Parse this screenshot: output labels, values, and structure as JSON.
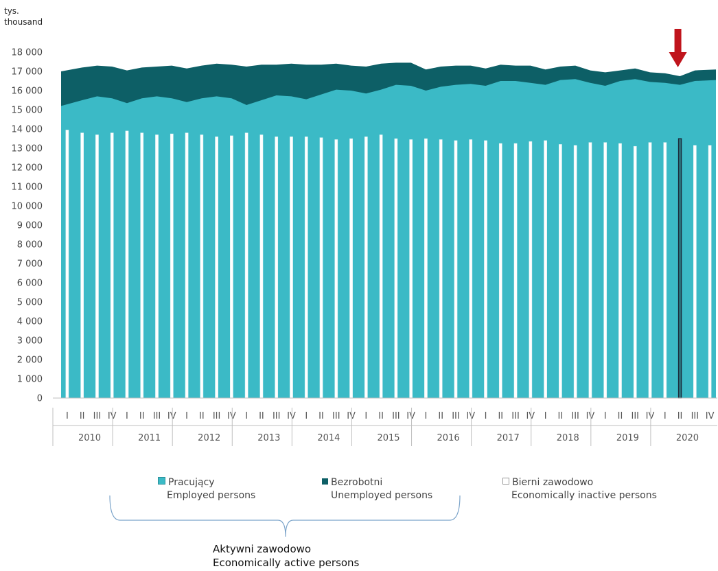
{
  "unit_label": {
    "pl": "tys.",
    "en": "thousand"
  },
  "legend": [
    {
      "pl": "Pracujący",
      "en": "Employed persons",
      "color": "#3bbac6"
    },
    {
      "pl": "Bezrobotni",
      "en": "Unemployed persons",
      "color": "#0d5f66"
    },
    {
      "pl": "Bierni zawodowo",
      "en": "Economically inactive persons",
      "color": "#ffffff"
    }
  ],
  "bracket_label": {
    "pl": "Aktywni zawodowo",
    "en": "Economically active persons"
  },
  "colors": {
    "employed": "#3bbac6",
    "unemployed": "#0d5f66",
    "inactive_bar": "#ffffff",
    "highlight_bar_border": "#1a2a3a",
    "arrow": "#c0141c",
    "axis": "#bfbfbf"
  },
  "chart_data": {
    "type": "area",
    "ylim": [
      0,
      18000
    ],
    "yticks": [
      "0",
      "1 000",
      "2 000",
      "3 000",
      "4 000",
      "5 000",
      "6 000",
      "7 000",
      "8 000",
      "9 000",
      "10 000",
      "11 000",
      "12 000",
      "13 000",
      "14 000",
      "15 000",
      "16 000",
      "17 000",
      "18 000"
    ],
    "years": [
      "2010",
      "2011",
      "2012",
      "2013",
      "2014",
      "2015",
      "2016",
      "2017",
      "2018",
      "2019",
      "2020"
    ],
    "quarters": [
      "I",
      "II",
      "III",
      "IV"
    ],
    "series": [
      {
        "name": "Pracujący / Employed persons",
        "kind": "area",
        "values": [
          15200,
          15500,
          15700,
          15600,
          15350,
          15600,
          15700,
          15600,
          15400,
          15600,
          15700,
          15600,
          15250,
          15500,
          15750,
          15700,
          15550,
          15800,
          16050,
          16000,
          15850,
          16050,
          16300,
          16250,
          16000,
          16200,
          16300,
          16350,
          16250,
          16500,
          16500,
          16400,
          16300,
          16550,
          16600,
          16400,
          16250,
          16500,
          16600,
          16450,
          16400,
          16300,
          16500,
          16550
        ]
      },
      {
        "name": "Bezrobotni / Unemployed persons",
        "kind": "area",
        "values": [
          1800,
          1700,
          1600,
          1650,
          1700,
          1600,
          1550,
          1700,
          1750,
          1700,
          1700,
          1750,
          2000,
          1850,
          1600,
          1700,
          1800,
          1550,
          1350,
          1300,
          1400,
          1350,
          1150,
          1200,
          1100,
          1050,
          1000,
          950,
          900,
          850,
          800,
          900,
          800,
          700,
          700,
          650,
          700,
          550,
          550,
          500,
          500,
          450,
          550,
          550
        ]
      },
      {
        "name": "Bierni zawodowo / Economically inactive persons",
        "kind": "bar",
        "values": [
          13950,
          13800,
          13700,
          13800,
          13900,
          13800,
          13700,
          13750,
          13800,
          13700,
          13600,
          13650,
          13800,
          13700,
          13600,
          13600,
          13600,
          13550,
          13450,
          13500,
          13600,
          13700,
          13500,
          13450,
          13500,
          13450,
          13400,
          13450,
          13400,
          13250,
          13250,
          13350,
          13400,
          13200,
          13150,
          13300,
          13300,
          13250,
          13100,
          13300,
          13300,
          13500,
          13150,
          13150
        ]
      }
    ],
    "highlight_index": 41
  }
}
